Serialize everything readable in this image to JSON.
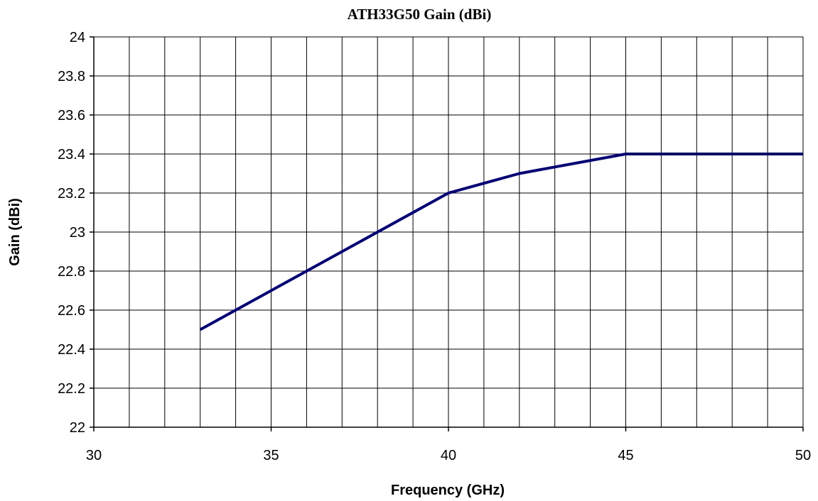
{
  "chart_data": {
    "type": "line",
    "title": "ATH33G50 Gain (dBi)",
    "xlabel": "Frequency (GHz)",
    "ylabel": "Gain (dBi)",
    "xlim": [
      30,
      50
    ],
    "ylim": [
      22,
      24
    ],
    "x_ticks": [
      "30",
      "35",
      "40",
      "45",
      "50"
    ],
    "y_ticks": [
      "22",
      "22.2",
      "22.4",
      "22.6",
      "22.8",
      "23",
      "23.2",
      "23.4",
      "23.6",
      "23.8",
      "24"
    ],
    "x_minor_step": 1,
    "y_step": 0.2,
    "grid": true,
    "series": [
      {
        "color": "#000080",
        "x": [
          33,
          40,
          42,
          45,
          50
        ],
        "y": [
          22.5,
          23.2,
          23.3,
          23.4,
          23.4
        ]
      }
    ]
  }
}
